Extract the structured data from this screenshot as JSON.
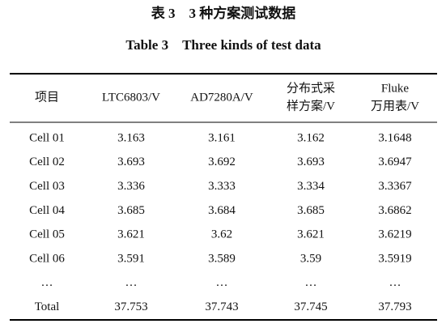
{
  "caption": {
    "title_cn": "表 3　3 种方案测试数据",
    "title_en": "Table 3　Three kinds of test data"
  },
  "table": {
    "header": [
      [
        "项目"
      ],
      [
        "LTC6803/V"
      ],
      [
        "AD7280A/V"
      ],
      [
        "分布式采",
        "样方案/V"
      ],
      [
        "Fluke",
        "万用表/V"
      ]
    ],
    "rows": [
      [
        "Cell 01",
        "3.163",
        "3.161",
        "3.162",
        "3.1648"
      ],
      [
        "Cell 02",
        "3.693",
        "3.692",
        "3.693",
        "3.6947"
      ],
      [
        "Cell 03",
        "3.336",
        "3.333",
        "3.334",
        "3.3367"
      ],
      [
        "Cell 04",
        "3.685",
        "3.684",
        "3.685",
        "3.6862"
      ],
      [
        "Cell 05",
        "3.621",
        "3.62",
        "3.621",
        "3.6219"
      ],
      [
        "Cell 06",
        "3.591",
        "3.589",
        "3.59",
        "3.5919"
      ],
      [
        "…",
        "…",
        "…",
        "…",
        "…"
      ],
      [
        "Total",
        "37.753",
        "37.743",
        "37.745",
        "37.793"
      ]
    ]
  }
}
